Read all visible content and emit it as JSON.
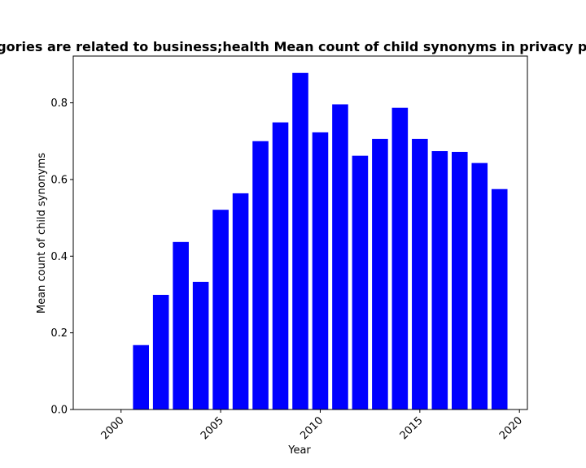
{
  "chart_data": {
    "type": "bar",
    "title": "categories are related to business;health Mean count of child synonyms in privacy policies",
    "xlabel": "Year",
    "ylabel": "Mean count of child synonyms",
    "x": [
      2001,
      2002,
      2003,
      2004,
      2005,
      2006,
      2007,
      2008,
      2009,
      2010,
      2011,
      2012,
      2013,
      2014,
      2015,
      2016,
      2017,
      2018,
      2019
    ],
    "values": [
      0.168,
      0.299,
      0.437,
      0.333,
      0.521,
      0.564,
      0.7,
      0.749,
      0.878,
      0.723,
      0.796,
      0.662,
      0.706,
      0.787,
      0.706,
      0.674,
      0.672,
      0.643,
      0.575
    ],
    "xlim": [
      1997.6,
      2020.4
    ],
    "ylim": [
      0,
      0.922
    ],
    "xticks": [
      2000,
      2005,
      2010,
      2015,
      2020
    ],
    "yticks": [
      0.0,
      0.2,
      0.4,
      0.6,
      0.8
    ],
    "bar_color": "#0000ff",
    "grid": false,
    "legend": "none"
  }
}
